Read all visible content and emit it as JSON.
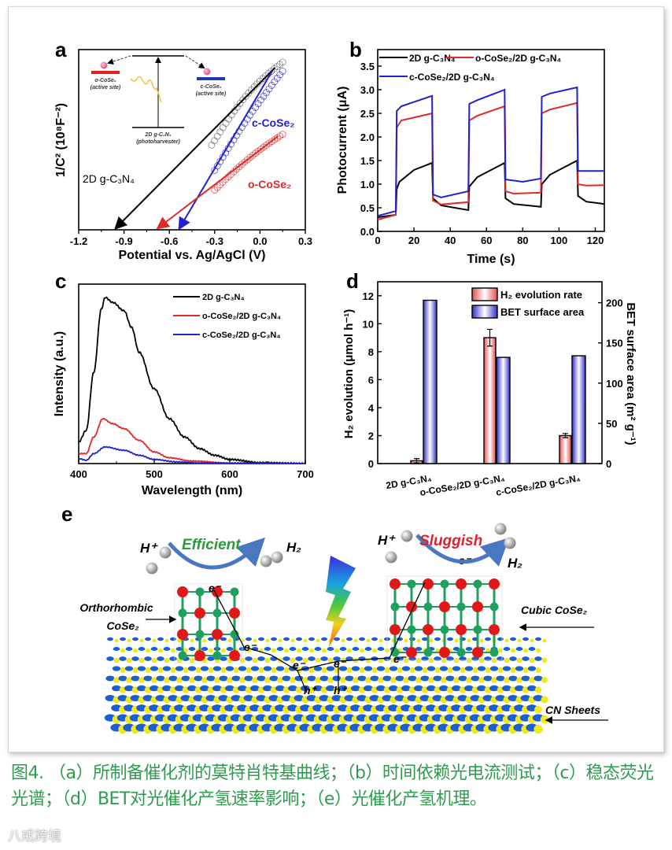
{
  "figure": {
    "panel_letters": [
      "a",
      "b",
      "c",
      "d",
      "e"
    ],
    "caption": "图4. （a）所制备催化剂的莫特肖特基曲线；（b）时间依赖光电流测试；（c）稳态荧光光谱；（d）BET对光催化产氢速率影响；（e）光催化产氢机理。",
    "caption_color": "#2e9b4e",
    "watermark": "八戒跨境"
  },
  "chart_data": [
    {
      "panel": "a",
      "type": "scatter",
      "xlabel": "Potential vs. Ag/AgCl (V)",
      "ylabel": "1/C² (10⁸F⁻²)",
      "xlim": [
        -1.2,
        0.3
      ],
      "xticks": [
        "-1.2",
        "-0.9",
        "-0.6",
        "-0.3",
        "0.0",
        "0.3"
      ],
      "ylim": [
        0,
        1
      ],
      "yticks_shown": false,
      "series": [
        {
          "label": "2D g-C₃N₄",
          "color": "#000000",
          "data_x": [
            -0.32,
            0.15
          ],
          "data_y": [
            0.47,
            0.93
          ],
          "fit_x": [
            0.1,
            -0.95
          ],
          "fit_y": [
            0.9,
            0
          ]
        },
        {
          "label": "c-CoSe₂",
          "color": "#2222cc",
          "data_x": [
            -0.3,
            0.15
          ],
          "data_y": [
            0.33,
            0.88
          ],
          "fit_x": [
            0.08,
            -0.53
          ],
          "fit_y": [
            0.88,
            0
          ]
        },
        {
          "label": "o-CoSe₂",
          "color": "#dd2a2a",
          "data_x": [
            -0.3,
            0.15
          ],
          "data_y": [
            0.22,
            0.53
          ],
          "fit_x": [
            0.12,
            -0.67
          ],
          "fit_y": [
            0.52,
            0
          ]
        }
      ],
      "inset": {
        "left_label": [
          "o-CoSe₂",
          "(active site)"
        ],
        "right_label": [
          "c-CoSe₂",
          "(active site)"
        ],
        "bottom_label": [
          "2D g-C₃N₄",
          "(photoharvester)"
        ]
      }
    },
    {
      "panel": "b",
      "type": "line",
      "xlabel": "Time (s)",
      "ylabel": "Photocurrent (μA)",
      "xlim": [
        0,
        125
      ],
      "ylim": [
        0,
        3.85
      ],
      "xticks": [
        0,
        20,
        40,
        60,
        80,
        100,
        120
      ],
      "yticks": [
        "0.0",
        "0.5",
        "1.0",
        "1.5",
        "2.0",
        "2.5",
        "3.0",
        "3.5"
      ],
      "legend_position": "top",
      "series": [
        {
          "name": "2D g-C₃N₄",
          "color": "#000000",
          "points": [
            [
              0,
              0.3
            ],
            [
              10,
              0.35
            ],
            [
              10.5,
              0.9
            ],
            [
              12,
              1.05
            ],
            [
              20,
              1.3
            ],
            [
              30,
              1.45
            ],
            [
              30.5,
              0.7
            ],
            [
              35,
              0.55
            ],
            [
              50,
              0.45
            ],
            [
              50.5,
              0.95
            ],
            [
              55,
              1.15
            ],
            [
              70,
              1.45
            ],
            [
              70.5,
              0.7
            ],
            [
              75,
              0.58
            ],
            [
              90,
              0.52
            ],
            [
              90.5,
              1.0
            ],
            [
              95,
              1.2
            ],
            [
              110,
              1.5
            ],
            [
              110.5,
              0.75
            ],
            [
              115,
              0.63
            ],
            [
              125,
              0.58
            ]
          ]
        },
        {
          "name": "o-CoSe₂/2D g-C₃N₄",
          "color": "#dd2a2a",
          "points": [
            [
              0,
              0.25
            ],
            [
              10,
              0.35
            ],
            [
              10.5,
              2.2
            ],
            [
              13,
              2.35
            ],
            [
              30,
              2.5
            ],
            [
              30.5,
              0.65
            ],
            [
              35,
              0.57
            ],
            [
              50,
              0.62
            ],
            [
              50.5,
              2.35
            ],
            [
              55,
              2.45
            ],
            [
              70,
              2.65
            ],
            [
              70.5,
              0.85
            ],
            [
              75,
              0.8
            ],
            [
              90,
              0.82
            ],
            [
              90.5,
              2.5
            ],
            [
              95,
              2.58
            ],
            [
              110,
              2.72
            ],
            [
              110.5,
              1.0
            ],
            [
              115,
              0.97
            ],
            [
              125,
              0.98
            ]
          ]
        },
        {
          "name": "c-CoSe₂/2D g-C₃N₄",
          "color": "#2222cc",
          "points": [
            [
              0,
              0.33
            ],
            [
              10,
              0.43
            ],
            [
              10.5,
              2.55
            ],
            [
              13,
              2.65
            ],
            [
              30,
              2.87
            ],
            [
              30.5,
              0.78
            ],
            [
              35,
              0.72
            ],
            [
              50,
              0.85
            ],
            [
              50.5,
              2.7
            ],
            [
              55,
              2.78
            ],
            [
              70,
              3.0
            ],
            [
              70.5,
              1.1
            ],
            [
              80,
              1.05
            ],
            [
              90,
              1.12
            ],
            [
              90.5,
              2.85
            ],
            [
              95,
              2.92
            ],
            [
              110,
              3.05
            ],
            [
              110.5,
              1.28
            ],
            [
              125,
              1.28
            ]
          ]
        }
      ]
    },
    {
      "panel": "c",
      "type": "line",
      "xlabel": "Wavelength (nm)",
      "ylabel": "Intensity (a.u.)",
      "xlim": [
        400,
        700
      ],
      "ylim": [
        0,
        1.08
      ],
      "xticks": [
        400,
        500,
        600,
        700
      ],
      "yticks_shown": false,
      "legend_position": "top-right",
      "series": [
        {
          "name": "2D g-C₃N₄",
          "color": "#000000",
          "points": [
            [
              400,
              0.13
            ],
            [
              410,
              0.2
            ],
            [
              420,
              0.55
            ],
            [
              430,
              0.93
            ],
            [
              435,
              1.0
            ],
            [
              445,
              0.97
            ],
            [
              460,
              0.92
            ],
            [
              470,
              0.82
            ],
            [
              480,
              0.67
            ],
            [
              500,
              0.45
            ],
            [
              520,
              0.27
            ],
            [
              540,
              0.16
            ],
            [
              560,
              0.09
            ],
            [
              580,
              0.05
            ],
            [
              600,
              0.025
            ],
            [
              640,
              0.005
            ],
            [
              700,
              0
            ]
          ]
        },
        {
          "name": "o-CoSe₂/2D g-C₃N₄",
          "color": "#dd2a2a",
          "points": [
            [
              400,
              0.06
            ],
            [
              410,
              0.06
            ],
            [
              420,
              0.16
            ],
            [
              432,
              0.27
            ],
            [
              445,
              0.24
            ],
            [
              460,
              0.21
            ],
            [
              480,
              0.14
            ],
            [
              500,
              0.07
            ],
            [
              520,
              0.035
            ],
            [
              550,
              0.015
            ],
            [
              600,
              0.003
            ],
            [
              700,
              0
            ]
          ]
        },
        {
          "name": "c-CoSe₂/2D g-C₃N₄",
          "color": "#2222cc",
          "points": [
            [
              400,
              0.03
            ],
            [
              410,
              0.02
            ],
            [
              420,
              0.06
            ],
            [
              435,
              0.1
            ],
            [
              460,
              0.08
            ],
            [
              480,
              0.05
            ],
            [
              500,
              0.025
            ],
            [
              530,
              0.01
            ],
            [
              560,
              0.003
            ],
            [
              700,
              0
            ]
          ]
        }
      ]
    },
    {
      "panel": "d",
      "type": "bar",
      "categories": [
        "2D g-C₃N₄",
        "o-CoSe₂/2D g-C₃N₄",
        "c-CoSe₂/2D g-C₃N₄"
      ],
      "ylabel": "H₂ evolution (μmol h⁻¹)",
      "ylabel_right": "BET surface area (m² g⁻¹)",
      "ylim": [
        0,
        13
      ],
      "ylim_right": [
        0,
        226
      ],
      "yticks": [
        0,
        2,
        4,
        6,
        8,
        10,
        12
      ],
      "yticks_right": [
        0,
        50,
        100,
        150,
        200
      ],
      "legend_position": "top-right",
      "series": [
        {
          "name": "H₂ evolution rate",
          "axis": "left",
          "color": "#e05050",
          "values": [
            0.2,
            9.0,
            2.0
          ],
          "errors": [
            0.15,
            0.6,
            0.15
          ]
        },
        {
          "name": "BET surface area",
          "axis": "right",
          "color": "#3030c8",
          "values": [
            203,
            132,
            134
          ]
        }
      ]
    }
  ],
  "diagram_e": {
    "labels": {
      "h_plus_left": "H⁺",
      "efficient": "Efficient",
      "h2_left": "H₂",
      "h_plus_right": "H⁺",
      "sluggish": "Sluggish",
      "h2_right": "H₂",
      "orthorhombic": [
        "Orthorhombic",
        "CoSe₂"
      ],
      "cubic": "Cubic CoSe₂",
      "cn_sheets": "CN Sheets",
      "electron": "e⁻",
      "hole": "h⁺"
    },
    "colors": {
      "efficient": "#2a9a3a",
      "sluggish": "#e02030",
      "se_atom": "#e01818",
      "co_atom": "#20a060",
      "cn_blue": "#1a5fd6",
      "cn_yellow": "#f2e81a"
    }
  }
}
